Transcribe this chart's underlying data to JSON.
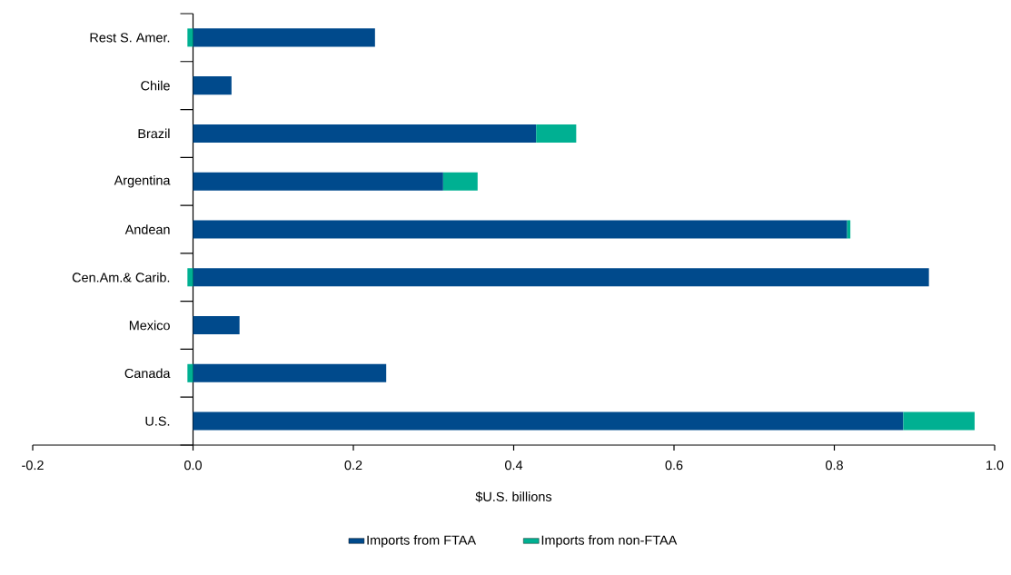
{
  "chart_data": {
    "type": "bar",
    "orientation": "horizontal",
    "stacked": true,
    "xlabel": "$U.S. billions",
    "categories": [
      "Rest S. Amer.",
      "Chile",
      "Brazil",
      "Argentina",
      "Andean",
      "Cen.Am.& Carib.",
      "Mexico",
      "Canada",
      "U.S."
    ],
    "series": [
      {
        "name": "Imports from FTAA",
        "color": "#004a8c",
        "values": [
          0.227,
          0.048,
          0.428,
          0.312,
          0.816,
          0.918,
          0.058,
          0.241,
          0.886
        ]
      },
      {
        "name": "Imports from non-FTAA",
        "color": "#00b092",
        "values": [
          -0.007,
          0,
          0.05,
          0.043,
          0.004,
          -0.007,
          0,
          -0.007,
          0.089
        ]
      }
    ],
    "xlim": [
      -0.2,
      1.0
    ],
    "xticks": [
      {
        "value": -0.2,
        "label": "-0.2"
      },
      {
        "value": 0,
        "label": "0.0"
      },
      {
        "value": 0.2,
        "label": "0.2"
      },
      {
        "value": 0.4,
        "label": "0.4"
      },
      {
        "value": 0.6,
        "label": "0.6"
      },
      {
        "value": 0.8,
        "label": "0.8"
      },
      {
        "value": 1.0,
        "label": "1.0"
      }
    ],
    "legend": "bottom",
    "grid": false
  }
}
